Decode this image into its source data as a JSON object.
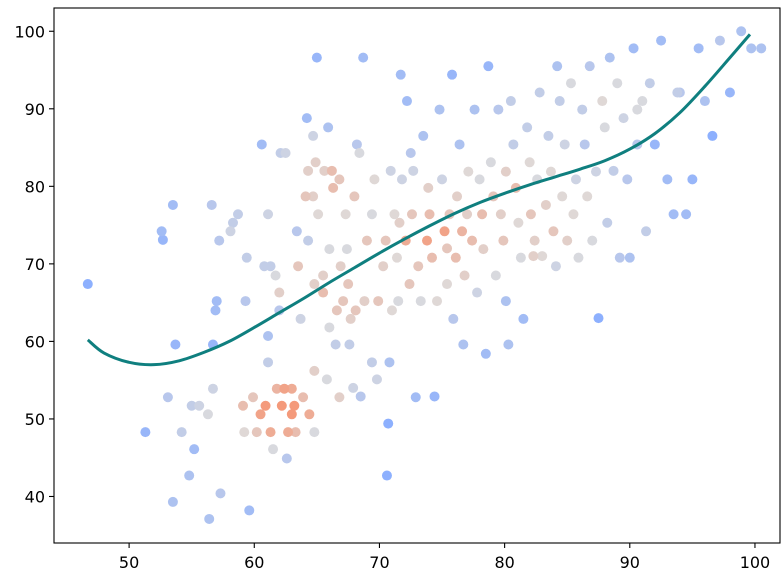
{
  "chart_data": {
    "type": "scatter",
    "title": "",
    "xlabel": "",
    "ylabel": "",
    "xlim": [
      44,
      102
    ],
    "ylim": [
      34,
      103
    ],
    "xticks": [
      50,
      60,
      70,
      80,
      90,
      100
    ],
    "yticks": [
      40,
      50,
      60,
      70,
      80,
      90,
      100
    ],
    "grid": false,
    "colormap": {
      "low": "#8db0fe",
      "mid": "#dddcdc",
      "high": "#f49a7b"
    },
    "trend_color": "#0f7f7f",
    "points": [
      [
        46.7,
        67.4
      ],
      [
        51.3,
        48.3
      ],
      [
        52.6,
        74.2
      ],
      [
        52.7,
        73.1
      ],
      [
        53.1,
        52.8
      ],
      [
        53.5,
        39.3
      ],
      [
        53.5,
        77.6
      ],
      [
        53.7,
        59.6
      ],
      [
        54.2,
        48.3
      ],
      [
        54.8,
        42.7
      ],
      [
        55.0,
        51.7
      ],
      [
        55.2,
        46.1
      ],
      [
        55.6,
        51.7
      ],
      [
        56.3,
        50.6
      ],
      [
        56.4,
        37.1
      ],
      [
        56.6,
        77.6
      ],
      [
        56.7,
        59.6
      ],
      [
        56.7,
        53.9
      ],
      [
        56.9,
        64.0
      ],
      [
        57.0,
        65.2
      ],
      [
        57.2,
        73.0
      ],
      [
        57.3,
        40.4
      ],
      [
        58.1,
        74.2
      ],
      [
        58.3,
        75.3
      ],
      [
        58.7,
        76.4
      ],
      [
        59.1,
        51.7
      ],
      [
        59.2,
        48.3
      ],
      [
        59.3,
        65.2
      ],
      [
        59.4,
        70.8
      ],
      [
        59.6,
        38.2
      ],
      [
        59.9,
        52.8
      ],
      [
        60.2,
        48.3
      ],
      [
        60.5,
        50.6
      ],
      [
        60.6,
        85.4
      ],
      [
        60.8,
        69.7
      ],
      [
        60.9,
        51.7
      ],
      [
        61.1,
        60.7
      ],
      [
        61.1,
        57.3
      ],
      [
        61.1,
        76.4
      ],
      [
        61.3,
        69.7
      ],
      [
        61.3,
        48.3
      ],
      [
        61.5,
        46.1
      ],
      [
        61.7,
        68.5
      ],
      [
        61.8,
        53.9
      ],
      [
        62.0,
        66.3
      ],
      [
        62.0,
        64.0
      ],
      [
        62.1,
        84.3
      ],
      [
        62.2,
        51.7
      ],
      [
        62.4,
        53.9
      ],
      [
        62.5,
        84.3
      ],
      [
        62.6,
        44.9
      ],
      [
        62.7,
        48.3
      ],
      [
        63.0,
        53.9
      ],
      [
        63.0,
        50.6
      ],
      [
        63.2,
        51.7
      ],
      [
        63.3,
        48.3
      ],
      [
        63.4,
        74.2
      ],
      [
        63.5,
        69.7
      ],
      [
        63.7,
        62.9
      ],
      [
        63.9,
        52.8
      ],
      [
        64.1,
        78.7
      ],
      [
        64.2,
        88.8
      ],
      [
        64.3,
        82.0
      ],
      [
        64.3,
        73.0
      ],
      [
        64.4,
        50.6
      ],
      [
        64.7,
        78.7
      ],
      [
        64.8,
        67.4
      ],
      [
        64.8,
        56.2
      ],
      [
        64.8,
        48.3
      ],
      [
        64.9,
        83.1
      ],
      [
        65.0,
        96.6
      ],
      [
        65.1,
        76.4
      ],
      [
        65.5,
        68.5
      ],
      [
        65.5,
        66.3
      ],
      [
        65.6,
        82.0
      ],
      [
        65.8,
        55.1
      ],
      [
        65.9,
        87.6
      ],
      [
        66.0,
        71.9
      ],
      [
        66.0,
        61.8
      ],
      [
        66.2,
        82.0
      ],
      [
        66.3,
        79.8
      ],
      [
        66.5,
        59.6
      ],
      [
        66.6,
        64.0
      ],
      [
        66.8,
        52.8
      ],
      [
        66.8,
        80.9
      ],
      [
        66.9,
        69.7
      ],
      [
        67.1,
        65.2
      ],
      [
        67.4,
        71.9
      ],
      [
        67.5,
        67.4
      ],
      [
        67.6,
        59.6
      ],
      [
        67.7,
        62.9
      ],
      [
        67.9,
        54.0
      ],
      [
        68.0,
        78.7
      ],
      [
        68.1,
        64.0
      ],
      [
        68.2,
        85.4
      ],
      [
        68.4,
        84.3
      ],
      [
        68.5,
        52.9
      ],
      [
        68.7,
        96.6
      ],
      [
        68.8,
        65.2
      ],
      [
        69.0,
        73.0
      ],
      [
        69.4,
        76.4
      ],
      [
        69.4,
        57.3
      ],
      [
        69.6,
        80.9
      ],
      [
        69.8,
        55.1
      ],
      [
        69.9,
        65.2
      ],
      [
        70.3,
        69.7
      ],
      [
        70.5,
        73.0
      ],
      [
        70.6,
        42.7
      ],
      [
        70.7,
        49.4
      ],
      [
        70.8,
        57.3
      ],
      [
        70.9,
        82.0
      ],
      [
        71.0,
        64.0
      ],
      [
        71.2,
        76.4
      ],
      [
        71.4,
        70.8
      ],
      [
        71.5,
        65.2
      ],
      [
        71.6,
        75.3
      ],
      [
        71.7,
        94.4
      ],
      [
        71.8,
        80.9
      ],
      [
        72.1,
        73.0
      ],
      [
        72.2,
        91.0
      ],
      [
        72.4,
        67.4
      ],
      [
        72.5,
        84.3
      ],
      [
        72.6,
        76.4
      ],
      [
        72.7,
        82.0
      ],
      [
        72.9,
        52.8
      ],
      [
        73.1,
        69.7
      ],
      [
        73.3,
        65.2
      ],
      [
        73.5,
        86.5
      ],
      [
        73.8,
        73.0
      ],
      [
        74.0,
        76.4
      ],
      [
        74.2,
        70.8
      ],
      [
        74.4,
        52.9
      ],
      [
        74.6,
        65.2
      ],
      [
        74.8,
        89.9
      ],
      [
        75.0,
        80.9
      ],
      [
        75.2,
        74.2
      ],
      [
        75.4,
        72.0
      ],
      [
        75.4,
        67.4
      ],
      [
        75.6,
        76.4
      ],
      [
        75.8,
        94.4
      ],
      [
        75.9,
        62.9
      ],
      [
        76.1,
        70.8
      ],
      [
        76.2,
        78.7
      ],
      [
        76.4,
        85.4
      ],
      [
        76.6,
        74.2
      ],
      [
        76.7,
        59.6
      ],
      [
        76.8,
        68.5
      ],
      [
        77.0,
        76.4
      ],
      [
        77.1,
        81.9
      ],
      [
        77.4,
        73.0
      ],
      [
        77.6,
        89.9
      ],
      [
        77.8,
        66.3
      ],
      [
        78.0,
        80.9
      ],
      [
        78.2,
        76.4
      ],
      [
        78.3,
        71.9
      ],
      [
        78.5,
        58.4
      ],
      [
        78.7,
        95.5
      ],
      [
        78.9,
        83.1
      ],
      [
        79.1,
        78.7
      ],
      [
        79.3,
        68.5
      ],
      [
        79.5,
        89.9
      ],
      [
        79.7,
        76.4
      ],
      [
        79.9,
        73.0
      ],
      [
        80.1,
        81.9
      ],
      [
        80.3,
        59.6
      ],
      [
        80.5,
        91.0
      ],
      [
        80.7,
        85.4
      ],
      [
        80.9,
        79.8
      ],
      [
        81.1,
        75.3
      ],
      [
        81.3,
        70.8
      ],
      [
        81.5,
        62.9
      ],
      [
        81.8,
        87.6
      ],
      [
        82.0,
        83.1
      ],
      [
        82.1,
        76.4
      ],
      [
        82.4,
        73.0
      ],
      [
        82.6,
        80.9
      ],
      [
        82.8,
        92.1
      ],
      [
        83.0,
        71.0
      ],
      [
        83.3,
        77.6
      ],
      [
        83.5,
        86.5
      ],
      [
        83.7,
        81.9
      ],
      [
        83.9,
        74.2
      ],
      [
        84.1,
        69.7
      ],
      [
        84.2,
        95.5
      ],
      [
        84.4,
        91.0
      ],
      [
        84.6,
        78.7
      ],
      [
        84.8,
        85.4
      ],
      [
        85.0,
        73.0
      ],
      [
        85.3,
        93.3
      ],
      [
        85.5,
        76.4
      ],
      [
        85.7,
        80.9
      ],
      [
        85.9,
        70.8
      ],
      [
        86.2,
        89.9
      ],
      [
        86.4,
        85.4
      ],
      [
        86.6,
        78.7
      ],
      [
        86.8,
        95.5
      ],
      [
        87.0,
        73.0
      ],
      [
        87.3,
        81.9
      ],
      [
        87.5,
        63.0
      ],
      [
        87.8,
        91.0
      ],
      [
        88.0,
        87.6
      ],
      [
        88.2,
        75.3
      ],
      [
        88.4,
        96.6
      ],
      [
        88.7,
        82.0
      ],
      [
        89.0,
        93.3
      ],
      [
        89.2,
        70.8
      ],
      [
        89.5,
        88.8
      ],
      [
        89.8,
        80.9
      ],
      [
        90.0,
        70.8
      ],
      [
        90.3,
        97.8
      ],
      [
        90.6,
        85.4
      ],
      [
        91.0,
        91.0
      ],
      [
        91.3,
        74.2
      ],
      [
        91.6,
        93.3
      ],
      [
        92.0,
        85.4
      ],
      [
        92.5,
        98.8
      ],
      [
        93.0,
        80.9
      ],
      [
        93.5,
        76.4
      ],
      [
        94.0,
        92.1
      ],
      [
        94.5,
        76.4
      ],
      [
        95.0,
        80.9
      ],
      [
        95.5,
        97.8
      ],
      [
        96.0,
        91.0
      ],
      [
        96.6,
        86.5
      ],
      [
        97.2,
        98.8
      ],
      [
        98.0,
        92.1
      ],
      [
        98.9,
        100.0
      ],
      [
        99.7,
        97.8
      ],
      [
        100.5,
        97.8
      ],
      [
        64.7,
        86.5
      ],
      [
        67.3,
        76.4
      ],
      [
        73.9,
        79.8
      ],
      [
        80.1,
        65.2
      ],
      [
        82.3,
        71.0
      ],
      [
        90.6,
        89.9
      ],
      [
        93.8,
        92.1
      ]
    ],
    "trend": [
      [
        46.7,
        60.2
      ],
      [
        48.0,
        58.5
      ],
      [
        50.0,
        57.3
      ],
      [
        52.0,
        57.0
      ],
      [
        54.0,
        57.5
      ],
      [
        56.0,
        58.6
      ],
      [
        58.0,
        60.0
      ],
      [
        60.0,
        61.8
      ],
      [
        62.0,
        63.7
      ],
      [
        64.0,
        65.6
      ],
      [
        66.0,
        67.6
      ],
      [
        68.0,
        69.5
      ],
      [
        70.0,
        71.4
      ],
      [
        72.0,
        73.2
      ],
      [
        74.0,
        74.9
      ],
      [
        76.0,
        76.5
      ],
      [
        78.0,
        77.9
      ],
      [
        80.0,
        79.1
      ],
      [
        82.0,
        80.2
      ],
      [
        84.0,
        81.2
      ],
      [
        86.0,
        82.2
      ],
      [
        88.0,
        83.3
      ],
      [
        90.0,
        84.8
      ],
      [
        92.0,
        86.8
      ],
      [
        94.0,
        89.5
      ],
      [
        96.0,
        92.9
      ],
      [
        98.0,
        96.6
      ],
      [
        99.6,
        99.6
      ]
    ]
  }
}
